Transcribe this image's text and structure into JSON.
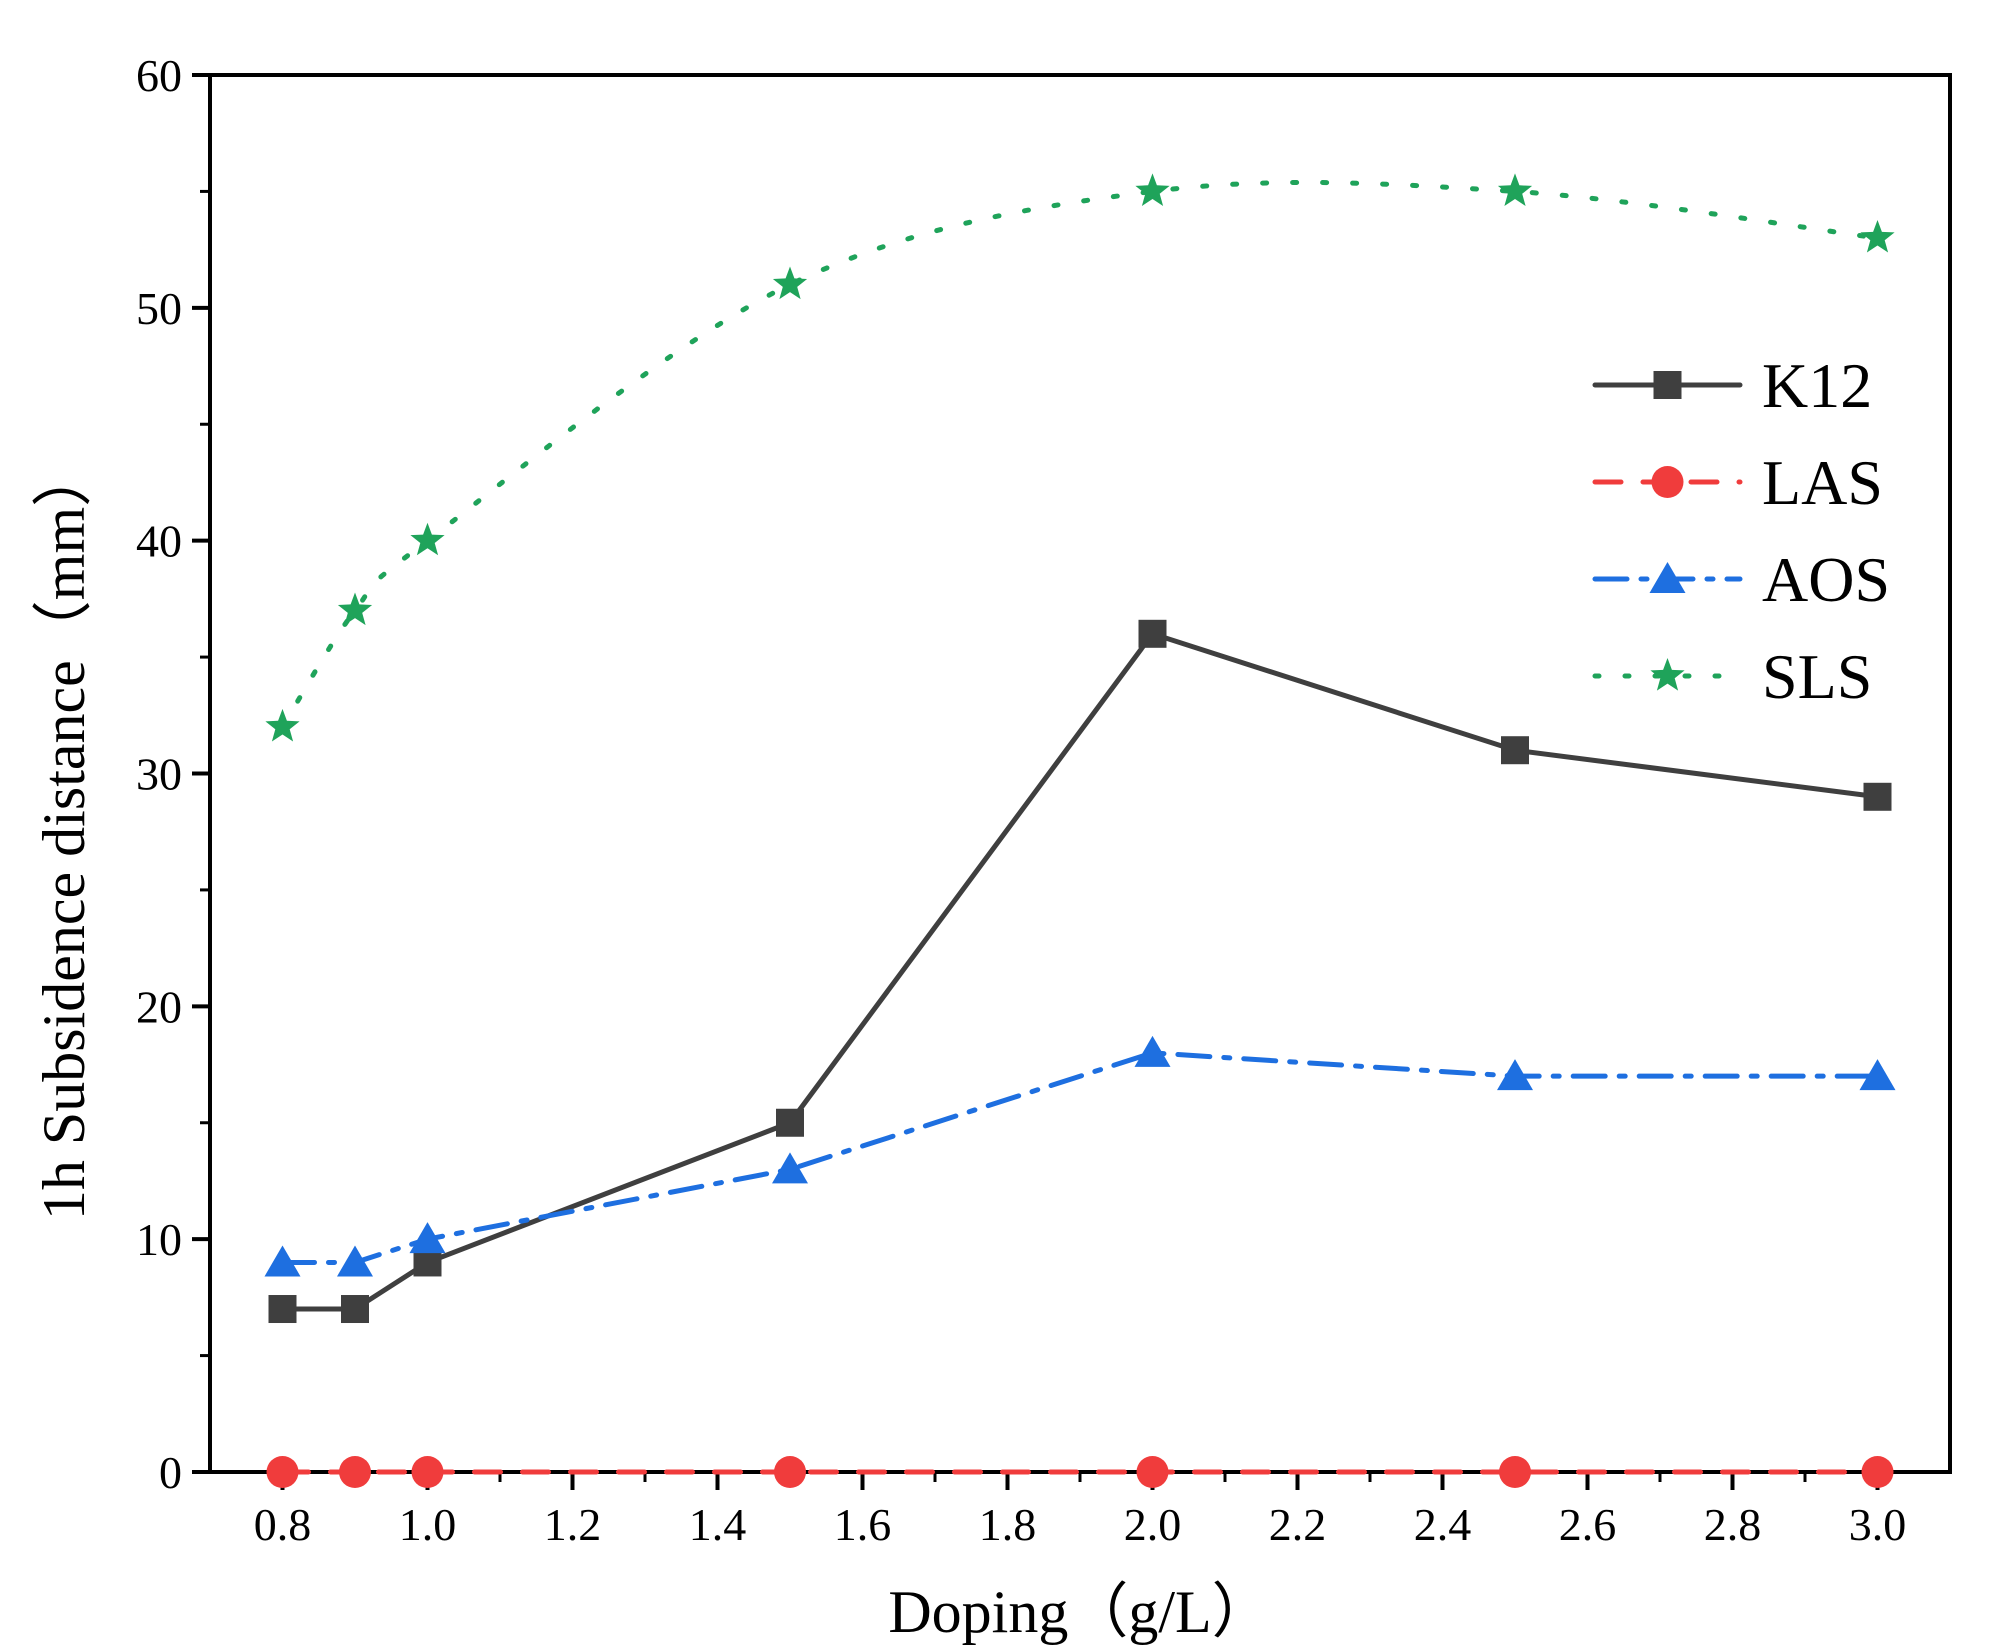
{
  "chart_data": {
    "type": "line",
    "title": "",
    "xlabel": "Doping（g/L）",
    "ylabel": "1h Subsidence distance（mm）",
    "xlim": [
      0.7,
      3.1
    ],
    "ylim": [
      0,
      60
    ],
    "x_ticks": [
      "0.8",
      "1.0",
      "1.2",
      "1.4",
      "1.6",
      "1.8",
      "2.0",
      "2.2",
      "2.4",
      "2.6",
      "2.8",
      "3.0"
    ],
    "y_ticks": [
      "0",
      "10",
      "20",
      "30",
      "40",
      "50",
      "60"
    ],
    "grid": false,
    "legend_position": "right",
    "x": [
      0.8,
      0.9,
      1.0,
      1.5,
      2.0,
      2.5,
      3.0
    ],
    "series": [
      {
        "name": "K12",
        "values": [
          7,
          7,
          9,
          15,
          36,
          31,
          29
        ],
        "color": "#3f3f3f",
        "marker": "square",
        "dash": "solid"
      },
      {
        "name": "LAS",
        "values": [
          0,
          0,
          0,
          0,
          0,
          0,
          0
        ],
        "color": "#f03c3c",
        "marker": "circle",
        "dash": "dash"
      },
      {
        "name": "AOS",
        "values": [
          9,
          9,
          10,
          13,
          18,
          17,
          17
        ],
        "color": "#1e6fe0",
        "marker": "triangle",
        "dash": "dashdot"
      },
      {
        "name": "SLS",
        "values": [
          32,
          37,
          40,
          51,
          55,
          55,
          53
        ],
        "color": "#1fa35a",
        "marker": "star",
        "dash": "dot",
        "smooth": true
      }
    ]
  }
}
